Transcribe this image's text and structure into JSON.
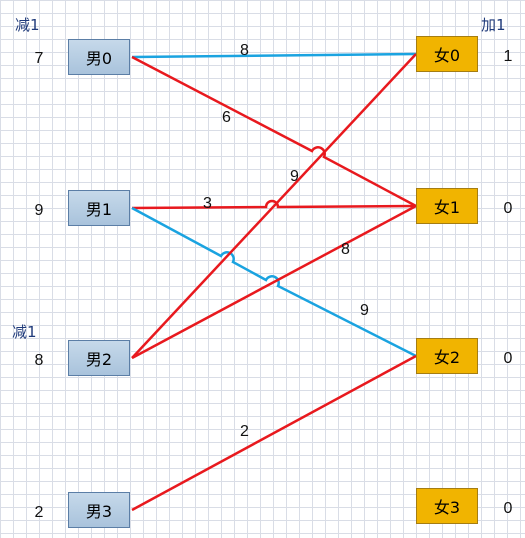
{
  "males": [
    {
      "label": "男0",
      "value": "7",
      "tag": "减1"
    },
    {
      "label": "男1",
      "value": "9",
      "tag": ""
    },
    {
      "label": "男2",
      "value": "8",
      "tag": "减1"
    },
    {
      "label": "男3",
      "value": "2",
      "tag": ""
    }
  ],
  "females": [
    {
      "label": "女0",
      "value": "1",
      "tag": "加1"
    },
    {
      "label": "女1",
      "value": "0",
      "tag": ""
    },
    {
      "label": "女2",
      "value": "0",
      "tag": ""
    },
    {
      "label": "女3",
      "value": "0",
      "tag": ""
    }
  ],
  "edges": [
    {
      "from": 0,
      "to": 0,
      "weight": "8",
      "color": "#1aa3e0"
    },
    {
      "from": 0,
      "to": 1,
      "weight": "6",
      "color": "#e8191e"
    },
    {
      "from": 1,
      "to": 1,
      "weight": "3",
      "color": "#e8191e"
    },
    {
      "from": 1,
      "to": 2,
      "weight": "9",
      "color": "#1aa3e0"
    },
    {
      "from": 2,
      "to": 0,
      "weight": "9",
      "color": "#e8191e"
    },
    {
      "from": 2,
      "to": 1,
      "weight": "8",
      "color": "#e8191e"
    },
    {
      "from": 3,
      "to": 2,
      "weight": "2",
      "color": "#e8191e"
    }
  ]
}
